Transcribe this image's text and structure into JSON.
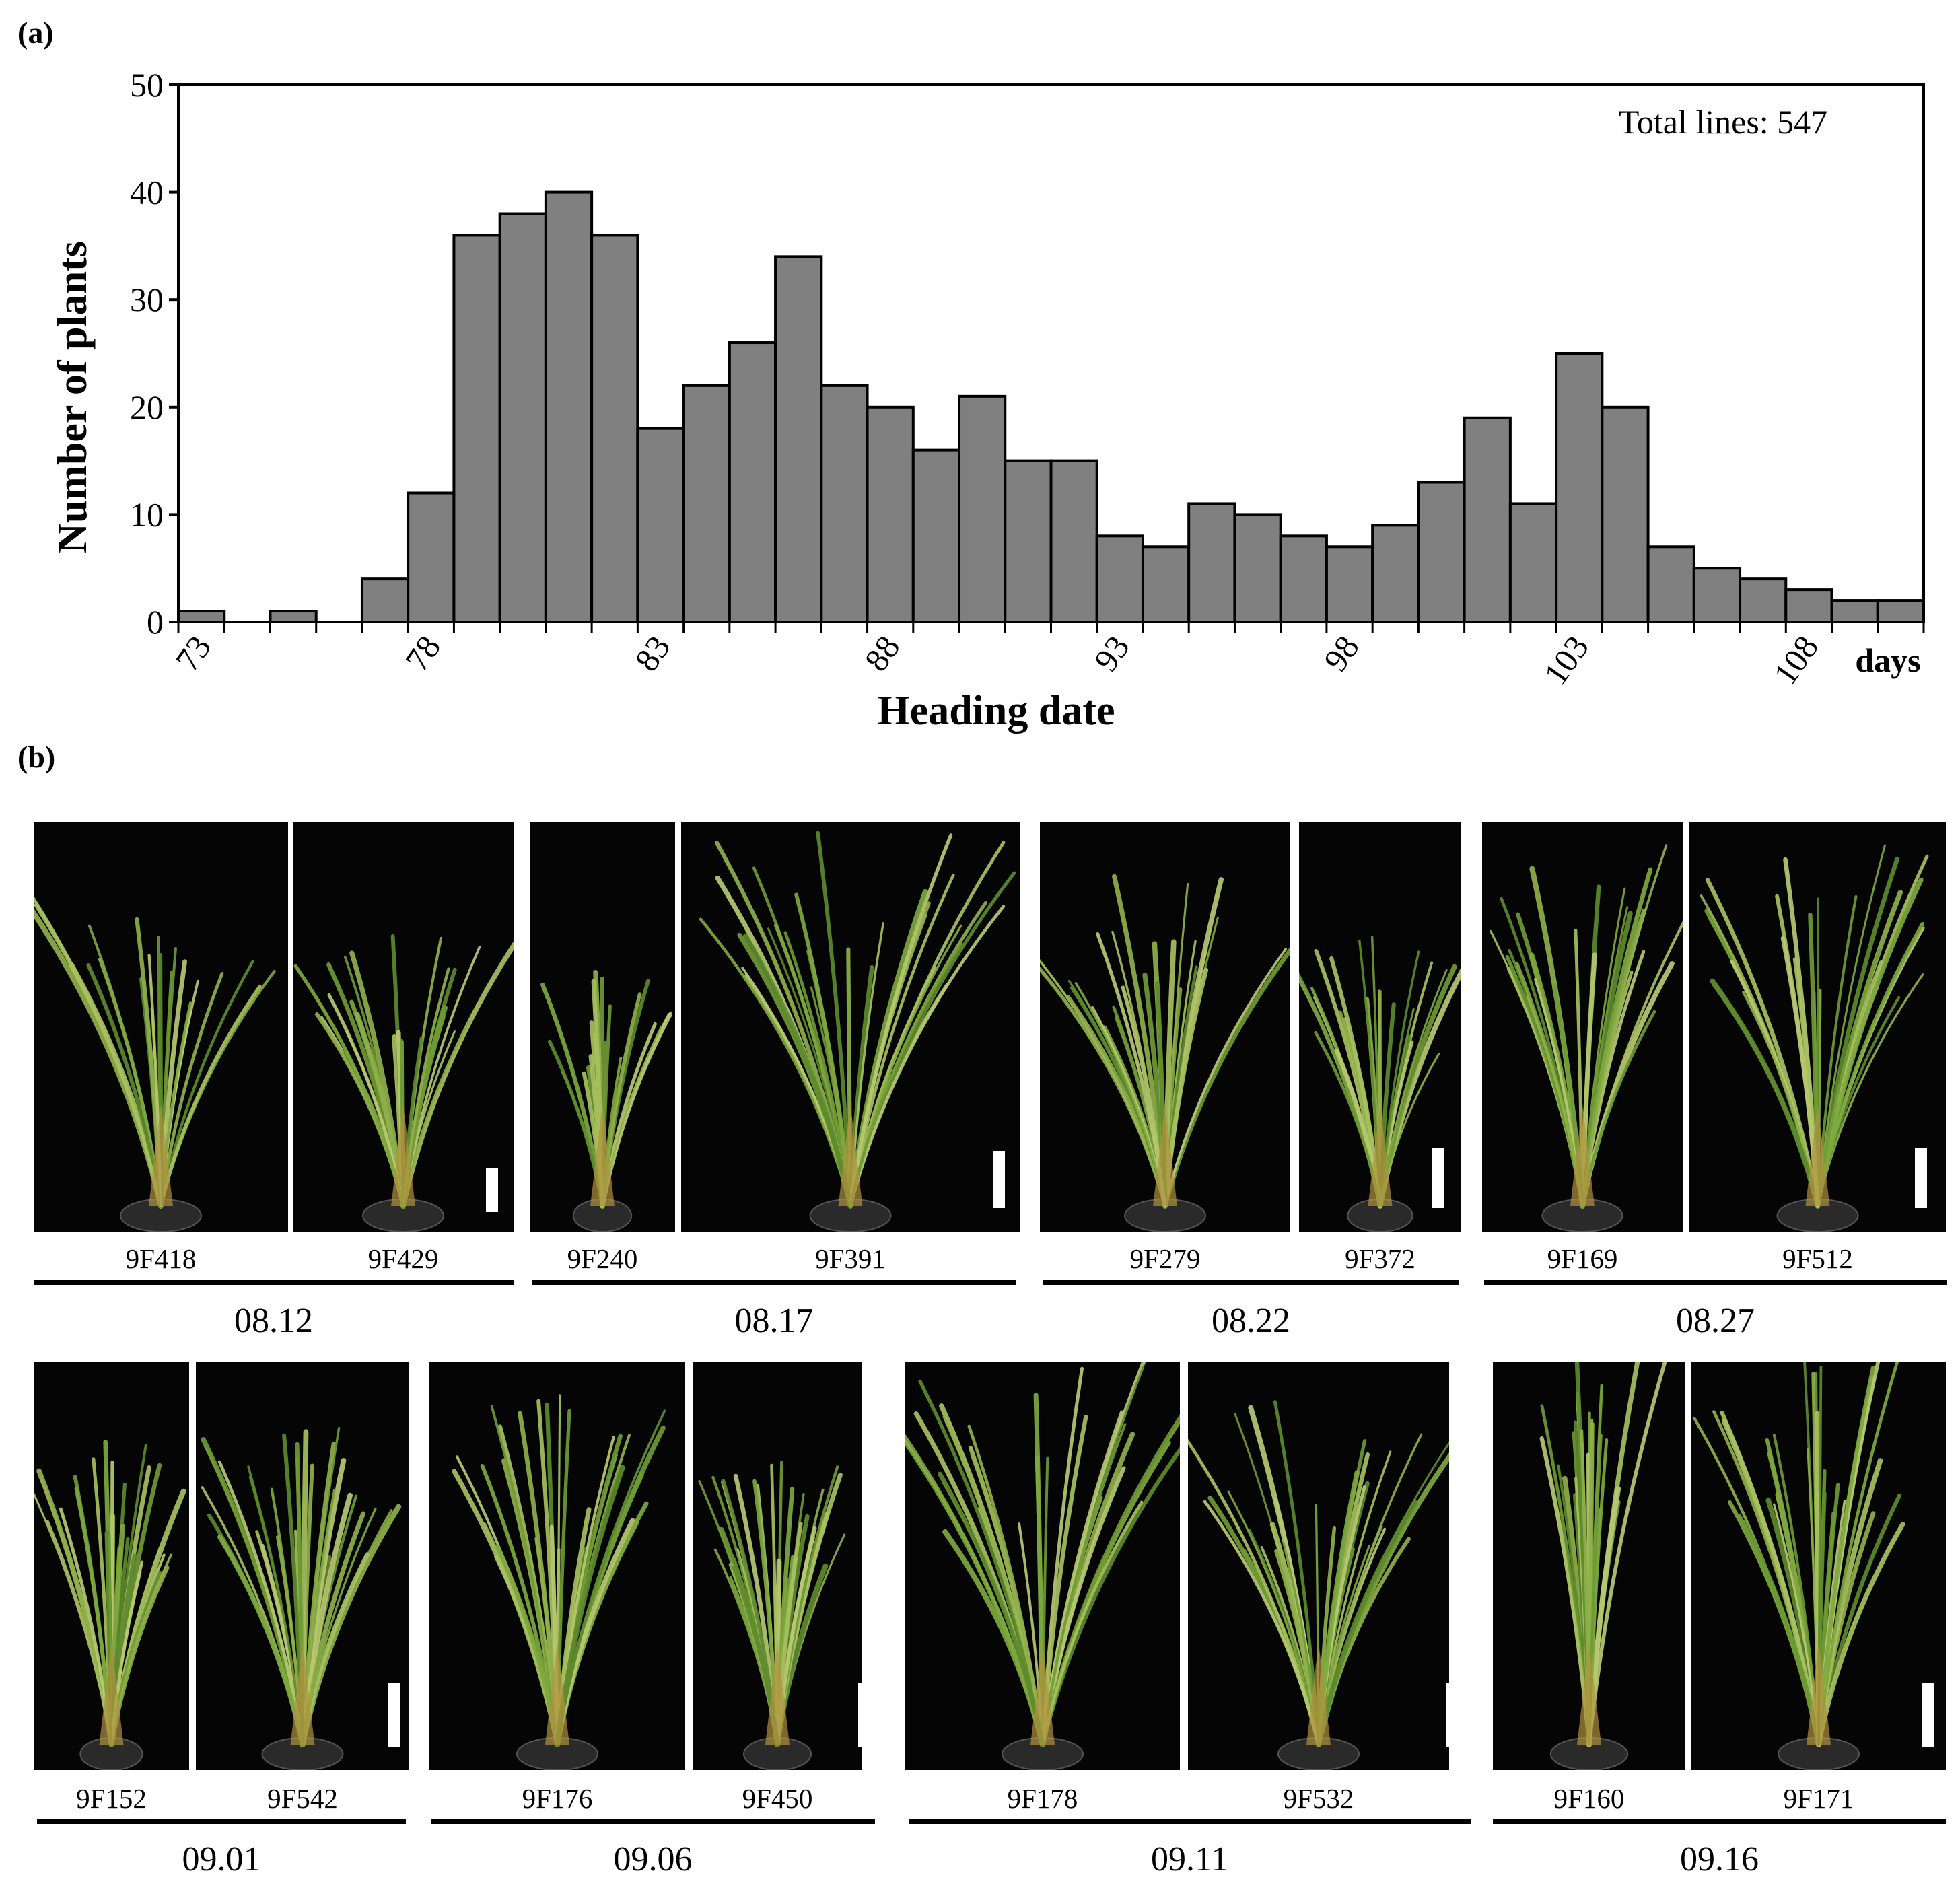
{
  "panel_a": {
    "label": "(a)"
  },
  "panel_b": {
    "label": "(b)"
  },
  "colors": {
    "bar_fill": "#808080",
    "bar_edge": "#000000",
    "photo_bg": "#050505"
  },
  "chart_data": {
    "type": "bar",
    "title": "",
    "xlabel": "Heading date",
    "ylabel": "Number of plants",
    "x_unit": "days",
    "annotation": "Total lines: 547",
    "ylim": [
      0,
      50
    ],
    "yticks": [
      "0",
      "10",
      "20",
      "30",
      "40",
      "50"
    ],
    "xticks": [
      "73",
      "78",
      "83",
      "88",
      "93",
      "98",
      "103",
      "108"
    ],
    "categories": [
      73,
      74,
      75,
      76,
      77,
      78,
      79,
      80,
      81,
      82,
      83,
      84,
      85,
      86,
      87,
      88,
      89,
      90,
      91,
      92,
      93,
      94,
      95,
      96,
      97,
      98,
      99,
      100,
      101,
      102,
      103,
      104,
      105,
      106,
      107,
      108,
      109,
      110
    ],
    "values": [
      1,
      0,
      1,
      0,
      4,
      12,
      36,
      38,
      40,
      36,
      18,
      22,
      26,
      34,
      22,
      20,
      16,
      21,
      15,
      15,
      8,
      7,
      11,
      10,
      8,
      7,
      9,
      13,
      19,
      11,
      25,
      20,
      7,
      5,
      4,
      3,
      2,
      2
    ]
  },
  "photo_rows": [
    {
      "groups": [
        {
          "date": "08.12",
          "plants": [
            {
              "id": "9F418"
            },
            {
              "id": "9F429"
            }
          ]
        },
        {
          "date": "08.17",
          "plants": [
            {
              "id": "9F240"
            },
            {
              "id": "9F391"
            }
          ]
        },
        {
          "date": "08.22",
          "plants": [
            {
              "id": "9F279"
            },
            {
              "id": "9F372"
            }
          ]
        },
        {
          "date": "08.27",
          "plants": [
            {
              "id": "9F169"
            },
            {
              "id": "9F512"
            }
          ]
        }
      ]
    },
    {
      "groups": [
        {
          "date": "09.01",
          "plants": [
            {
              "id": "9F152"
            },
            {
              "id": "9F542"
            }
          ]
        },
        {
          "date": "09.06",
          "plants": [
            {
              "id": "9F176"
            },
            {
              "id": "9F450"
            }
          ]
        },
        {
          "date": "09.11",
          "plants": [
            {
              "id": "9F178"
            },
            {
              "id": "9F532"
            }
          ]
        },
        {
          "date": "09.16",
          "plants": [
            {
              "id": "9F160"
            },
            {
              "id": "9F171"
            }
          ]
        }
      ]
    }
  ]
}
